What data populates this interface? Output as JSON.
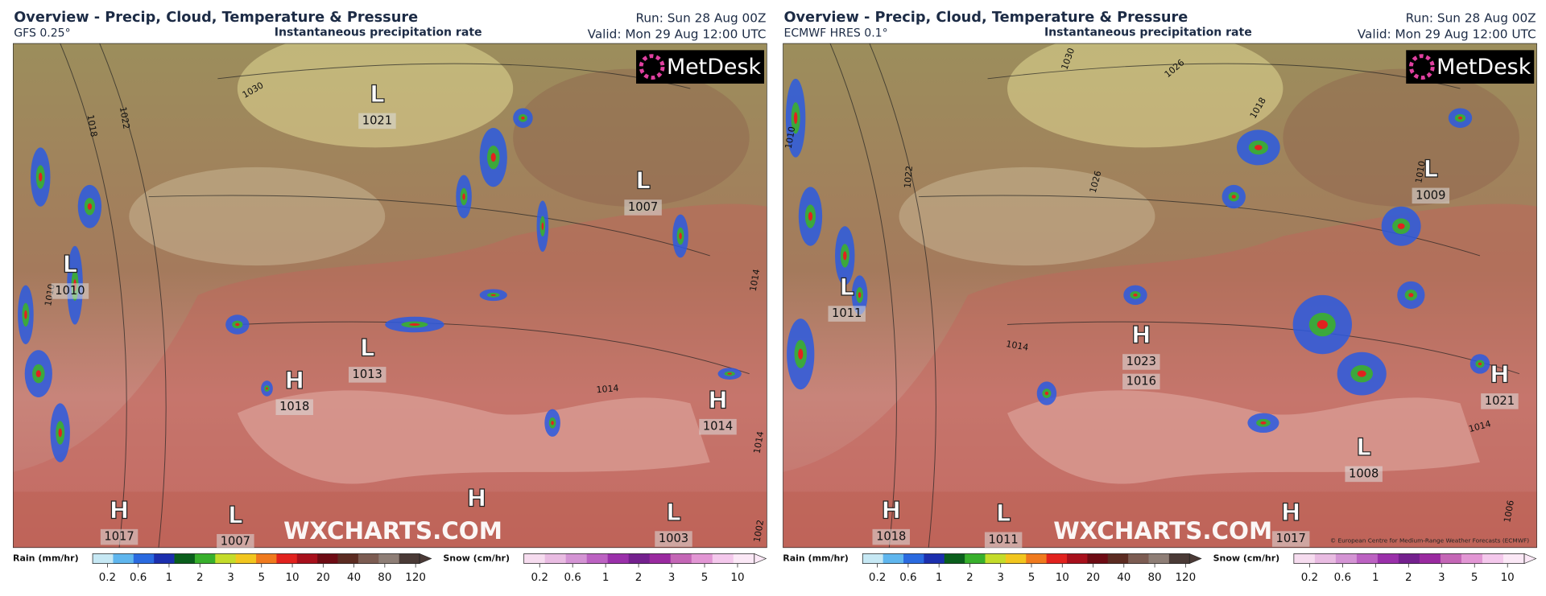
{
  "panels": [
    {
      "title": "Overview - Precip, Cloud, Temperature & Pressure",
      "model": "GFS 0.25°",
      "product": "Instantaneous precipitation rate",
      "run": "Run: Sun 28 Aug 00Z",
      "valid": "Valid: Mon 29 Aug 12:00 UTC",
      "logo": "MetDesk",
      "watermark": "WXCHARTS.COM",
      "centers": [
        {
          "type": "L",
          "pressure": 1021
        },
        {
          "type": "L",
          "pressure": 1007
        },
        {
          "type": "L",
          "pressure": 1010
        },
        {
          "type": "L",
          "pressure": 1013
        },
        {
          "type": "H",
          "pressure": 1018
        },
        {
          "type": "H",
          "pressure": 1014
        },
        {
          "type": "H",
          "pressure": 1017
        },
        {
          "type": "L",
          "pressure": 1007
        },
        {
          "type": "H"
        },
        {
          "type": "L",
          "pressure": 1003
        }
      ],
      "isobar_labels": [
        1030,
        1022,
        1018,
        1014,
        1014,
        1010,
        1014,
        1002
      ]
    },
    {
      "title": "Overview - Precip, Cloud, Temperature & Pressure",
      "model": "ECMWF HRES 0.1°",
      "product": "Instantaneous precipitation rate",
      "run": "Run: Sun 28 Aug 00Z",
      "valid": "Valid: Mon 29 Aug 12:00 UTC",
      "logo": "MetDesk",
      "watermark": "WXCHARTS.COM",
      "centers": [
        {
          "type": "L",
          "pressure": 1009
        },
        {
          "type": "L",
          "pressure": 1011
        },
        {
          "type": "H",
          "pressure": 1023
        },
        {
          "pressure": 1016
        },
        {
          "type": "H",
          "pressure": 1021
        },
        {
          "type": "L",
          "pressure": 1008
        },
        {
          "type": "H",
          "pressure": 1018
        },
        {
          "type": "L",
          "pressure": 1011
        },
        {
          "type": "H",
          "pressure": 1017
        }
      ],
      "isobar_labels": [
        1030,
        1026,
        1026,
        1022,
        1018,
        1014,
        1014,
        1010,
        1010,
        1006
      ],
      "copyright": "© European Centre for Medium-Range Weather Forecasts (ECMWF)"
    }
  ],
  "rain_legend": {
    "label": "Rain (mm/hr)",
    "ticks": [
      0.2,
      0.6,
      1,
      2,
      3,
      5,
      10,
      20,
      40,
      80,
      120
    ],
    "colors": [
      "#c6e8f4",
      "#5fb6ee",
      "#2a6ae0",
      "#1c2fae",
      "#0a5e1c",
      "#38b02c",
      "#c4dc2a",
      "#f2c61e",
      "#f07a1e",
      "#e2221e",
      "#a8101c",
      "#6e0c14",
      "#5c2c22",
      "#7c5c52",
      "#8e7e76",
      "#4a3a36"
    ]
  },
  "snow_legend": {
    "label": "Snow (cm/hr)",
    "ticks": [
      0.2,
      0.6,
      1,
      2,
      3,
      5,
      10
    ],
    "colors": [
      "#f6dcef",
      "#e9bce2",
      "#d494d4",
      "#bc62c2",
      "#9a30aa",
      "#74208e",
      "#9a2aa0",
      "#c466b6",
      "#e296d4",
      "#f4c8ec",
      "#fbe8f6"
    ]
  }
}
